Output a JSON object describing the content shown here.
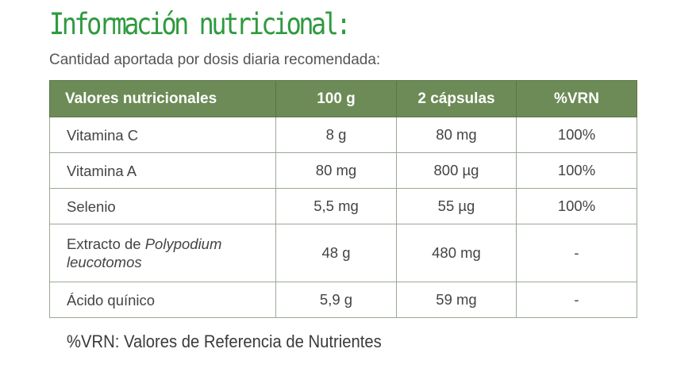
{
  "title": "Información nutricional:",
  "subtitle": "Cantidad aportada por dosis diaria recomendada:",
  "table": {
    "headers": [
      "Valores nutricionales",
      "100 g",
      "2 cápsulas",
      "%VRN"
    ],
    "rows": [
      {
        "name": "Vitamina C",
        "per100g": "8 g",
        "per2caps": "80 mg",
        "vrn": "100%"
      },
      {
        "name": "Vitamina A",
        "per100g": "80 mg",
        "per2caps": "800 µg",
        "vrn": "100%"
      },
      {
        "name": "Selenio",
        "per100g": "5,5 mg",
        "per2caps": "55 µg",
        "vrn": "100%"
      },
      {
        "name_prefix": "Extracto de ",
        "name_italic": "Polypodium leucotomos",
        "per100g": "48 g",
        "per2caps": "480 mg",
        "vrn": "-"
      },
      {
        "name": "Ácido quínico",
        "per100g": "5,9 g",
        "per2caps": "59 mg",
        "vrn": "-"
      }
    ]
  },
  "footnote": "%VRN: Valores de Referencia de Nutrientes",
  "colors": {
    "title": "#2e9a3f",
    "header_bg": "#6c8b56",
    "header_text": "#ffffff",
    "border": "#9aa895",
    "body_text": "#444444"
  }
}
